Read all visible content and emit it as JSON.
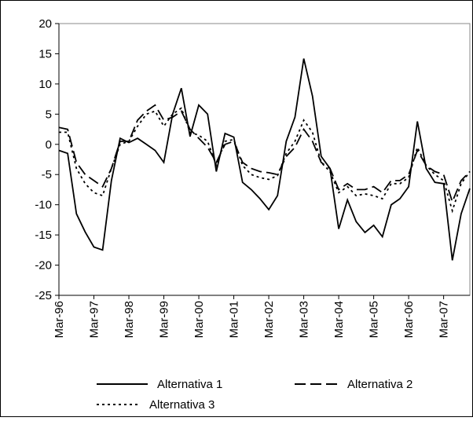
{
  "chart_data": {
    "type": "line",
    "categories": [
      "Mar-96",
      null,
      null,
      null,
      "Mar-97",
      null,
      null,
      null,
      "Mar-98",
      null,
      null,
      null,
      "Mar-99",
      null,
      null,
      null,
      "Mar-00",
      null,
      null,
      null,
      "Mar-01",
      null,
      null,
      null,
      "Mar-02",
      null,
      null,
      null,
      "Mar-03",
      null,
      null,
      null,
      "Mar-04",
      null,
      null,
      null,
      "Mar-05",
      null,
      null,
      null,
      "Mar-06",
      null,
      null,
      null,
      "Mar-07",
      null,
      null,
      null
    ],
    "series": [
      {
        "name": "Alternativa 1",
        "color": "#000000",
        "dash": "solid",
        "values": [
          -1,
          -1.5,
          -11.5,
          -14.5,
          -17,
          -17.5,
          -6,
          1,
          0.3,
          1,
          0,
          -1,
          -3,
          5,
          9.3,
          1.3,
          6.5,
          5,
          -4.5,
          1.8,
          1.2,
          -6.3,
          -7.5,
          -9,
          -10.8,
          -8.5,
          0.5,
          4.5,
          14.2,
          8,
          -2,
          -4,
          -14,
          -9.2,
          -12.8,
          -14.6,
          -13.4,
          -15.3,
          -10,
          -9,
          -7,
          3.8,
          -4,
          -6.3,
          -6.5,
          -19.2,
          -11.5,
          -7.3
        ]
      },
      {
        "name": "Alternativa 2",
        "color": "#000000",
        "dash": "dashed",
        "values": [
          2.8,
          2.5,
          -3,
          -5,
          -6,
          -7,
          -4,
          0.5,
          0.5,
          4,
          5.5,
          6.5,
          4,
          4.5,
          5.5,
          2.5,
          1,
          -0.5,
          -3,
          0,
          0.5,
          -3,
          -4,
          -4.5,
          -4.7,
          -5,
          -2,
          -0.5,
          2.5,
          0.5,
          -3,
          -4,
          -7.5,
          -6.5,
          -7.5,
          -7.5,
          -7,
          -8,
          -6,
          -6,
          -5,
          -1,
          -3.5,
          -4.5,
          -5,
          -9.5,
          -6,
          -4.5
        ]
      },
      {
        "name": "Alternativa 3",
        "color": "#000000",
        "dash": "dotted",
        "values": [
          2,
          2,
          -4,
          -6.5,
          -8,
          -8.5,
          -4,
          0,
          0.5,
          3,
          5,
          5.5,
          3,
          5,
          6,
          2,
          1.5,
          0.5,
          -3.5,
          0.5,
          0.8,
          -3.5,
          -5,
          -5.5,
          -5.8,
          -5.2,
          -1.5,
          0.5,
          4,
          2,
          -3,
          -4.5,
          -8,
          -7,
          -8.5,
          -8.2,
          -8.5,
          -9,
          -6.5,
          -6.5,
          -5.5,
          -0.5,
          -3.5,
          -5,
          -6,
          -11,
          -6.5,
          -4.5
        ]
      }
    ],
    "ylim": [
      -25,
      20
    ],
    "yticks": [
      -25,
      -20,
      -15,
      -10,
      -5,
      0,
      5,
      10,
      15,
      20
    ],
    "legend": "bottom"
  }
}
